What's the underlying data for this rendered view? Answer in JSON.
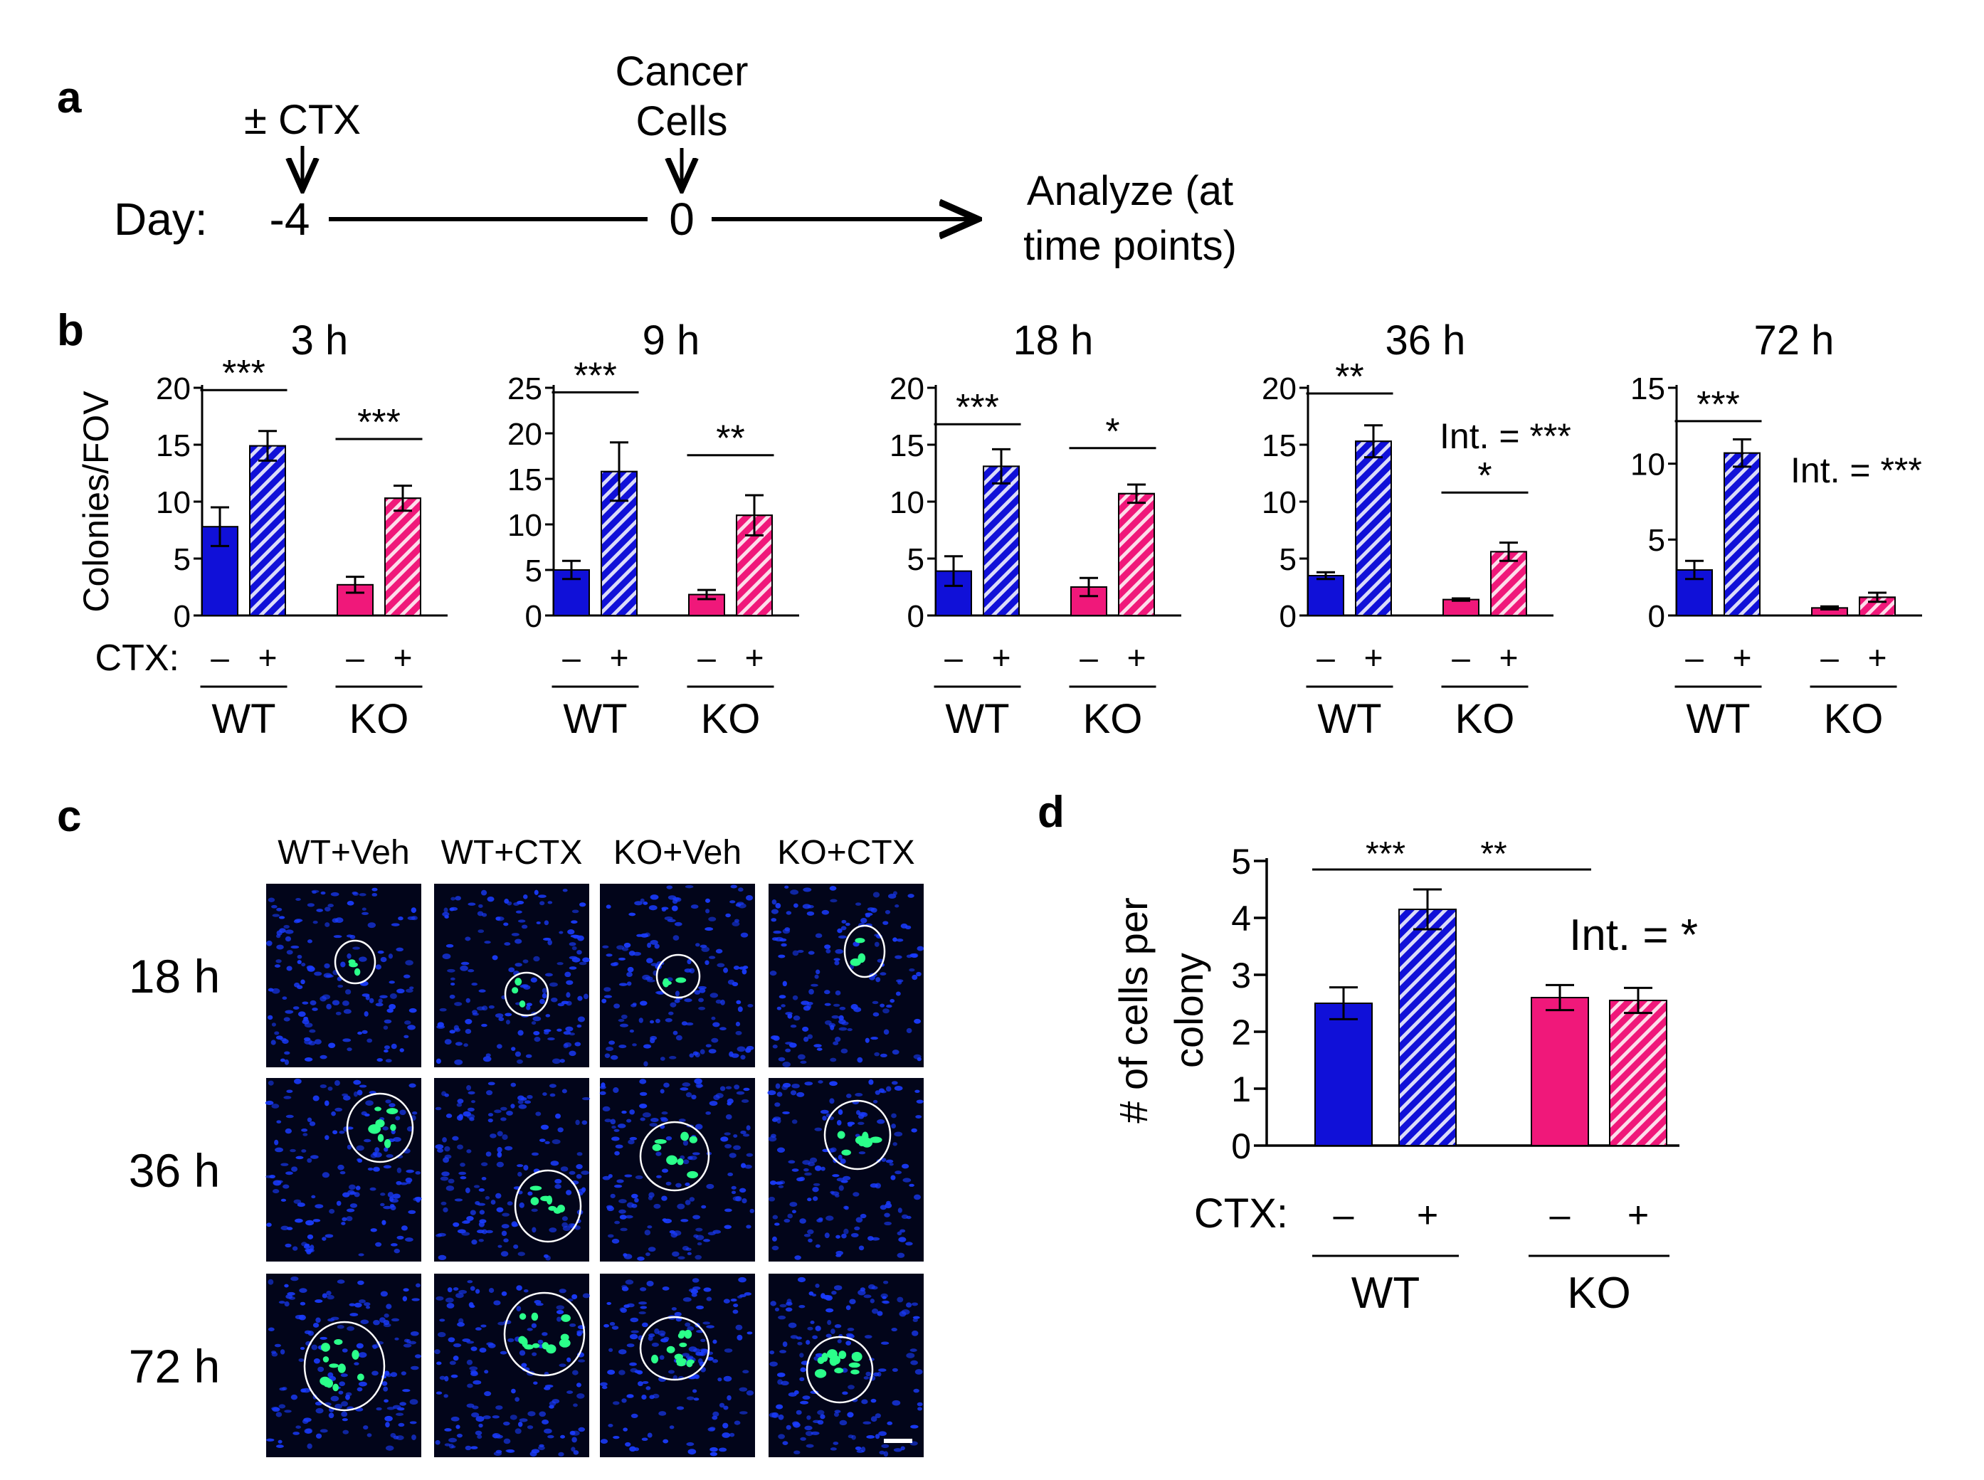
{
  "colors": {
    "wt": "#1010d8",
    "ko": "#f0187a",
    "hatch": "#ffffff",
    "micro_bg": "#02051a",
    "nuclei": "#1a3cff",
    "cancer": "#2bff8a",
    "circle": "#ffffff"
  },
  "panel_a": {
    "letter": "a",
    "ctx_label": "± CTX",
    "cancer_label": [
      "Cancer",
      "Cells"
    ],
    "day_label": "Day:",
    "day_start": "-4",
    "day_zero": "0",
    "analyze_label": [
      "Analyze (at",
      "time points)"
    ]
  },
  "panel_b": {
    "letter": "b",
    "ylabel": "Colonies/FOV",
    "ctx_label": "CTX:",
    "minus": "–",
    "plus": "+",
    "groups": [
      "WT",
      "KO"
    ]
  },
  "panel_c": {
    "letter": "c",
    "columns": [
      "WT+Veh",
      "WT+CTX",
      "KO+Veh",
      "KO+CTX"
    ],
    "rows": [
      "18 h",
      "36 h",
      "72 h"
    ]
  },
  "panel_d": {
    "letter": "d",
    "ylabel": [
      "# of cells per",
      "colony"
    ],
    "ctx_label": "CTX:",
    "minus": "–",
    "plus": "+",
    "groups": [
      "WT",
      "KO"
    ]
  },
  "chart_data": [
    {
      "id": "b-3h",
      "type": "bar",
      "title": "3 h",
      "ylabel": "Colonies/FOV",
      "ylim": [
        0,
        20
      ],
      "yticks": [
        0,
        5,
        10,
        15,
        20
      ],
      "categories": [
        "WT −",
        "WT +",
        "KO −",
        "KO +"
      ],
      "values": [
        7.8,
        14.9,
        2.7,
        10.3
      ],
      "errors": [
        1.7,
        1.3,
        0.7,
        1.1
      ],
      "annotations": [
        {
          "text": "***",
          "span": [
            0,
            1
          ],
          "level": 19.8
        },
        {
          "text": "***",
          "span": [
            2,
            3
          ],
          "level": 15.5
        }
      ]
    },
    {
      "id": "b-9h",
      "type": "bar",
      "title": "9 h",
      "ylim": [
        0,
        25
      ],
      "yticks": [
        0,
        5,
        10,
        15,
        20,
        25
      ],
      "categories": [
        "WT −",
        "WT +",
        "KO −",
        "KO +"
      ],
      "values": [
        5.0,
        15.8,
        2.3,
        11.0
      ],
      "errors": [
        1.0,
        3.2,
        0.5,
        2.2
      ],
      "annotations": [
        {
          "text": "***",
          "span": [
            0,
            1
          ],
          "level": 24.5
        },
        {
          "text": "**",
          "span": [
            2,
            3
          ],
          "level": 17.6
        }
      ]
    },
    {
      "id": "b-18h",
      "type": "bar",
      "title": "18 h",
      "ylim": [
        0,
        20
      ],
      "yticks": [
        0,
        5,
        10,
        15,
        20
      ],
      "categories": [
        "WT −",
        "WT +",
        "KO −",
        "KO +"
      ],
      "values": [
        3.9,
        13.1,
        2.5,
        10.7
      ],
      "errors": [
        1.3,
        1.5,
        0.8,
        0.8
      ],
      "annotations": [
        {
          "text": "***",
          "span": [
            0,
            1
          ],
          "level": 16.8
        },
        {
          "text": "*",
          "span": [
            2,
            3
          ],
          "level": 14.7
        }
      ]
    },
    {
      "id": "b-36h",
      "type": "bar",
      "title": "36 h",
      "ylim": [
        0,
        20
      ],
      "yticks": [
        0,
        5,
        10,
        15,
        20
      ],
      "categories": [
        "WT −",
        "WT +",
        "KO −",
        "KO +"
      ],
      "values": [
        3.5,
        15.3,
        1.4,
        5.6
      ],
      "errors": [
        0.3,
        1.4,
        0.1,
        0.8
      ],
      "annotations": [
        {
          "text": "**",
          "span": [
            0,
            1
          ],
          "level": 19.5
        },
        {
          "text": "*",
          "span": [
            2,
            3
          ],
          "level": 10.8
        }
      ],
      "interaction": "Int. = ***"
    },
    {
      "id": "b-72h",
      "type": "bar",
      "title": "72 h",
      "ylim": [
        0,
        15
      ],
      "yticks": [
        0,
        5,
        10,
        15
      ],
      "categories": [
        "WT −",
        "WT +",
        "KO −",
        "KO +"
      ],
      "values": [
        3.0,
        10.7,
        0.5,
        1.2
      ],
      "errors": [
        0.6,
        0.9,
        0.1,
        0.3
      ],
      "annotations": [
        {
          "text": "***",
          "span": [
            0,
            1
          ],
          "level": 12.8
        }
      ],
      "interaction": "Int. = ***"
    },
    {
      "id": "d",
      "type": "bar",
      "title": "",
      "ylabel": "# of cells per colony",
      "ylim": [
        0,
        5
      ],
      "yticks": [
        0,
        1,
        2,
        3,
        4,
        5
      ],
      "categories": [
        "WT −",
        "WT +",
        "KO −",
        "KO +"
      ],
      "values": [
        2.5,
        4.15,
        2.6,
        2.55
      ],
      "errors": [
        0.28,
        0.35,
        0.22,
        0.22
      ],
      "annotations": [
        {
          "text": "***",
          "span": [
            0,
            1
          ],
          "level": 4.85
        },
        {
          "text": "**",
          "span": [
            1,
            2
          ],
          "level": 4.85
        }
      ],
      "interaction": "Int. = *"
    }
  ]
}
